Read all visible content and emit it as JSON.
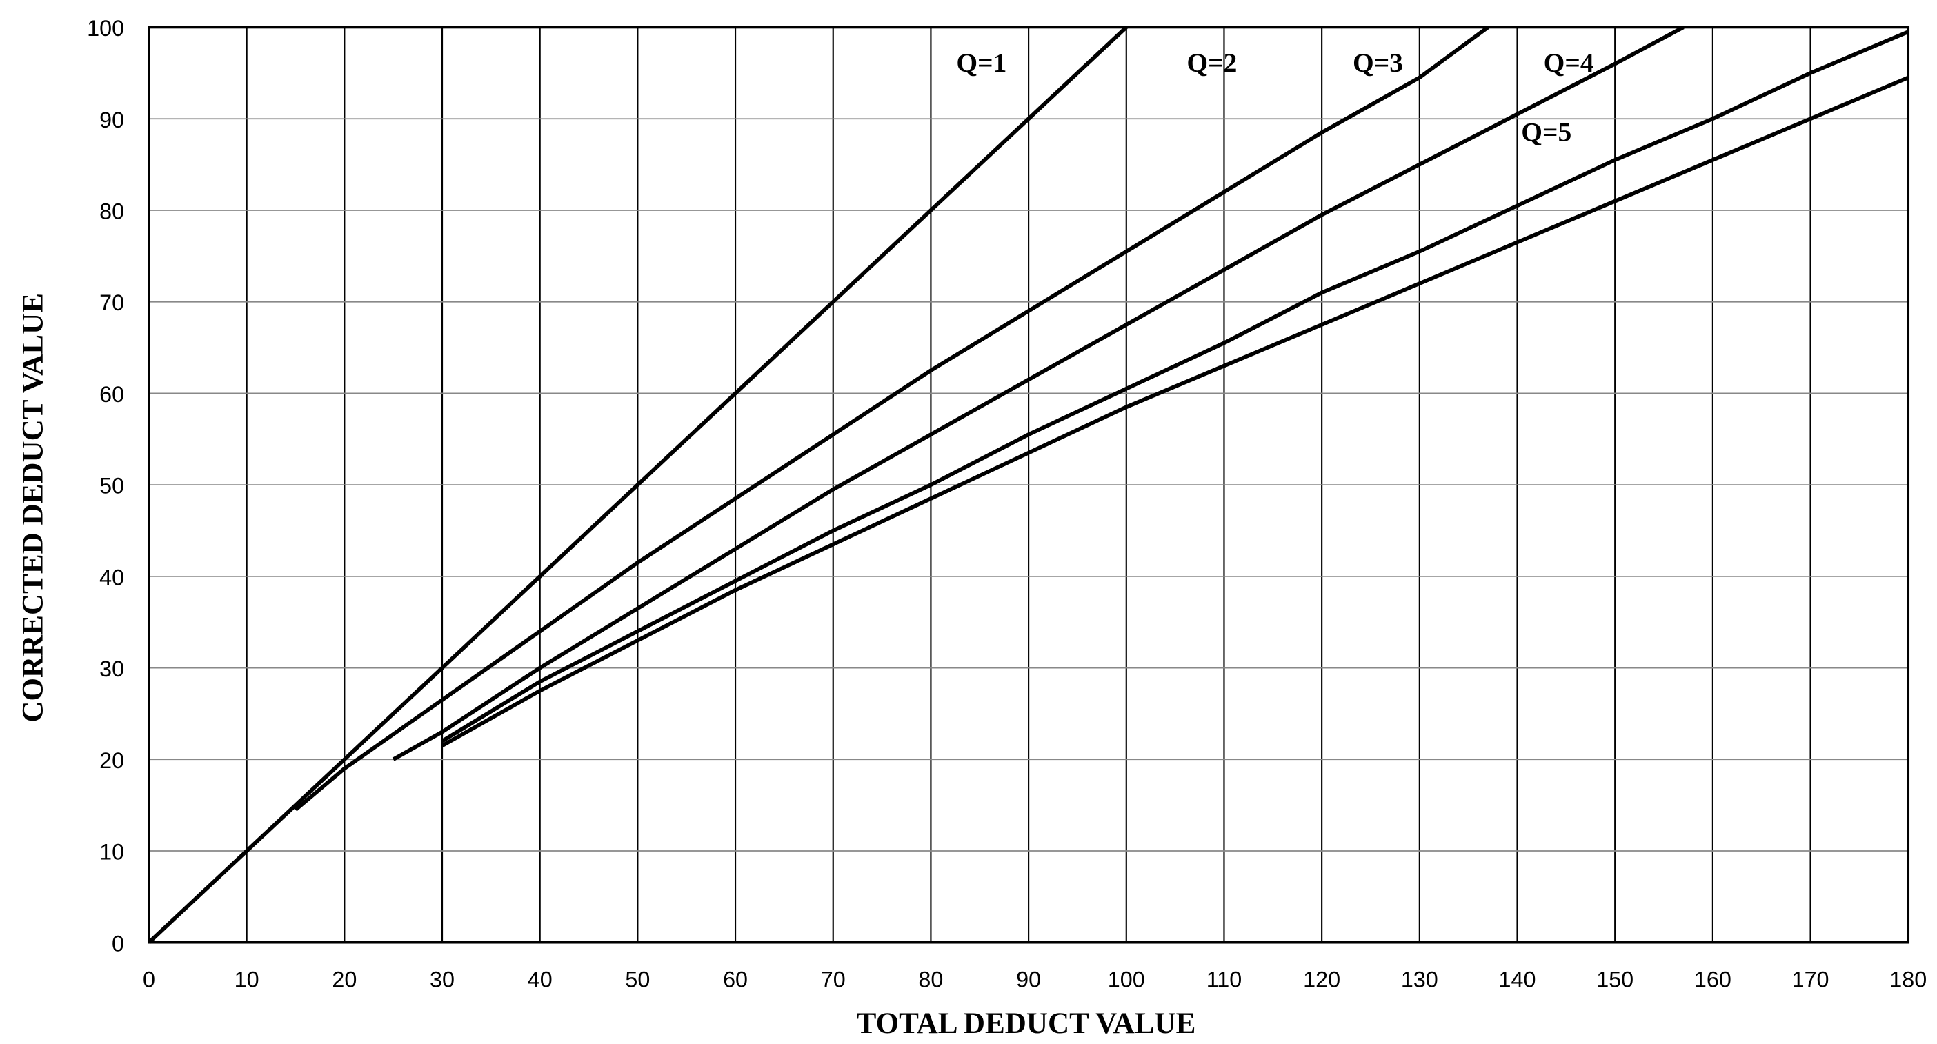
{
  "chart_data": {
    "type": "line",
    "xlabel": "TOTAL DEDUCT VALUE",
    "ylabel": "CORRECTED DEDUCT VALUE",
    "xlim": [
      0,
      180
    ],
    "ylim": [
      0,
      100
    ],
    "xticks": [
      0,
      10,
      20,
      30,
      40,
      50,
      60,
      70,
      80,
      90,
      100,
      110,
      120,
      130,
      140,
      150,
      160,
      170,
      180
    ],
    "yticks": [
      0,
      10,
      20,
      30,
      40,
      50,
      60,
      70,
      80,
      90,
      100
    ],
    "grid": true,
    "series": [
      {
        "name": "Q=1",
        "color": "#000000",
        "x": [
          0,
          10,
          20,
          30,
          40,
          50,
          60,
          70,
          80,
          90,
          100
        ],
        "values": [
          0,
          10,
          20,
          30,
          40,
          50,
          60,
          70,
          80,
          90,
          100
        ]
      },
      {
        "name": "Q=2",
        "color": "#000000",
        "x": [
          15,
          20,
          30,
          40,
          50,
          60,
          70,
          80,
          90,
          100,
          110,
          120,
          130,
          137
        ],
        "values": [
          14.5,
          19,
          26.5,
          34,
          41.5,
          48.5,
          55.5,
          62.5,
          69,
          75.5,
          82,
          88.5,
          94.5,
          100
        ]
      },
      {
        "name": "Q=3",
        "color": "#000000",
        "x": [
          25,
          30,
          40,
          50,
          60,
          70,
          80,
          90,
          100,
          110,
          120,
          130,
          140,
          150,
          157
        ],
        "values": [
          20,
          23,
          30,
          36.5,
          43,
          49.5,
          55.5,
          61.5,
          67.5,
          73.5,
          79.5,
          85,
          90.5,
          96,
          100
        ]
      },
      {
        "name": "Q=4",
        "color": "#000000",
        "x": [
          30,
          40,
          50,
          60,
          70,
          80,
          90,
          100,
          110,
          120,
          130,
          140,
          150,
          160,
          170,
          180
        ],
        "values": [
          22,
          28.5,
          34,
          39.5,
          45,
          50,
          55.5,
          60.5,
          65.5,
          71,
          75.5,
          80.5,
          85.5,
          90,
          95,
          99.5
        ]
      },
      {
        "name": "Q=5",
        "color": "#000000",
        "x": [
          30,
          40,
          50,
          60,
          70,
          80,
          90,
          100,
          110,
          120,
          130,
          140,
          150,
          160,
          170,
          180
        ],
        "values": [
          21.5,
          27.5,
          33,
          38.5,
          43.5,
          48.5,
          53.5,
          58.5,
          63,
          67.5,
          72,
          76.5,
          81,
          85.5,
          90,
          94.5
        ]
      }
    ]
  }
}
